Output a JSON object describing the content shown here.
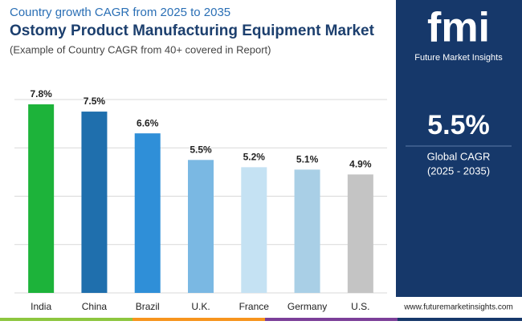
{
  "chart_data": {
    "type": "bar",
    "supertitle": "Country growth CAGR from 2025 to 2035",
    "title": "Ostomy Product Manufacturing Equipment Market",
    "subtitle": "(Example of Country CAGR from 40+ covered in Report)",
    "categories": [
      "India",
      "China",
      "Brazil",
      "U.K.",
      "France",
      "Germany",
      "U.S."
    ],
    "values": [
      7.8,
      7.5,
      6.6,
      5.5,
      5.2,
      5.1,
      4.9
    ],
    "value_labels": [
      "7.8%",
      "7.5%",
      "6.6%",
      "5.5%",
      "5.2%",
      "5.1%",
      "4.9%"
    ],
    "colors": [
      "#1db33a",
      "#1f6fad",
      "#2f8fd8",
      "#7ab8e3",
      "#c5e2f3",
      "#a9cfe6",
      "#c4c4c4"
    ],
    "ylim": [
      0,
      8
    ],
    "yticks": [
      0,
      2,
      4,
      6,
      8
    ],
    "grid": true
  },
  "panel": {
    "logo": "fmi",
    "brand": "Future Market Insights",
    "value": "5.5%",
    "label": "Global CAGR",
    "period": "(2025 - 2035)"
  },
  "footer": {
    "website": "www.futuremarketinsights.com"
  }
}
